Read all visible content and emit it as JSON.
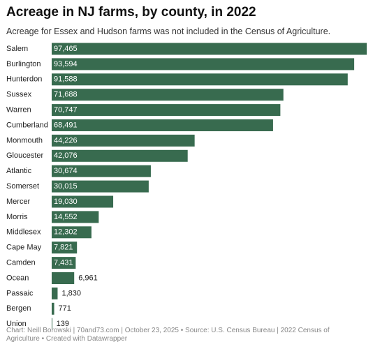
{
  "chart_data": {
    "type": "bar",
    "title": "Acreage in NJ farms, by county, in 2022",
    "subtitle": "Acreage for Essex and Hudson farms was not included in the Census of Agriculture.",
    "categories": [
      "Salem",
      "Burlington",
      "Hunterdon",
      "Sussex",
      "Warren",
      "Cumberland",
      "Monmouth",
      "Gloucester",
      "Atlantic",
      "Somerset",
      "Mercer",
      "Morris",
      "Middlesex",
      "Cape May",
      "Camden",
      "Ocean",
      "Passaic",
      "Bergen",
      "Union"
    ],
    "values": [
      97465,
      93594,
      91588,
      71688,
      70747,
      68491,
      44226,
      42076,
      30674,
      30015,
      19030,
      14552,
      12302,
      7821,
      7431,
      6961,
      1830,
      771,
      139
    ],
    "value_labels": [
      "97,465",
      "93,594",
      "91,588",
      "71,688",
      "70,747",
      "68,491",
      "44,226",
      "42,076",
      "30,674",
      "30,015",
      "19,030",
      "14,552",
      "12,302",
      "7,821",
      "7,431",
      "6,961",
      "1,830",
      "771",
      "139"
    ],
    "color": "#386b4f",
    "footer": "Chart: Neill Borowski | 70and73.com | October 23, 2025 • Source: U.S. Census Bureau | 2022 Census of Agriculture • Created with Datawrapper"
  }
}
